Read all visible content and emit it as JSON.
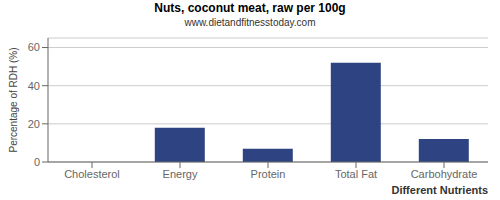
{
  "chart_data": {
    "type": "bar",
    "title": "Nuts, coconut meat, raw per 100g",
    "subtitle": "www.dietandfitnesstoday.com",
    "xlabel": "Different Nutrients",
    "ylabel": "Percentage of RDH (%)",
    "categories": [
      "Cholesterol",
      "Energy",
      "Protein",
      "Total Fat",
      "Carbohydrate"
    ],
    "values": [
      0,
      18,
      7,
      52,
      12
    ],
    "color": "#2e4482",
    "ylim": [
      0,
      65
    ],
    "yticks": [
      0,
      20,
      40,
      60
    ],
    "grid": true
  }
}
